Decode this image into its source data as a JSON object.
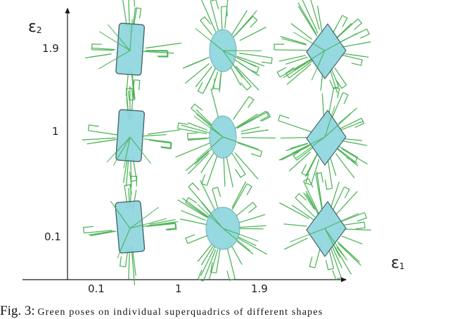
{
  "figure": {
    "x_axis": {
      "symbol": "ε",
      "subscript": "1",
      "ticks": [
        "0.1",
        "1",
        "1.9"
      ]
    },
    "y_axis": {
      "symbol": "ε",
      "subscript": "2",
      "ticks": [
        "1.9",
        "1",
        "0.1"
      ]
    },
    "colors": {
      "shape_fill": "#8fd6de",
      "shape_edge": "#3a5a60",
      "pose_lines": "#3fae4a",
      "axis": "#1a1a1a"
    },
    "grid": [
      {
        "row": "1.9",
        "col": "0.1",
        "shape": "box"
      },
      {
        "row": "1.9",
        "col": "1",
        "shape": "ellipsoid"
      },
      {
        "row": "1.9",
        "col": "1.9",
        "shape": "octahedron"
      },
      {
        "row": "1",
        "col": "0.1",
        "shape": "box"
      },
      {
        "row": "1",
        "col": "1",
        "shape": "ellipsoid"
      },
      {
        "row": "1",
        "col": "1.9",
        "shape": "octahedron"
      },
      {
        "row": "0.1",
        "col": "0.1",
        "shape": "box"
      },
      {
        "row": "0.1",
        "col": "1",
        "shape": "ellipsoid"
      },
      {
        "row": "0.1",
        "col": "1.9",
        "shape": "octahedron"
      }
    ]
  },
  "caption": {
    "label": "Fig. 3:",
    "text": "Green poses on individual superquadrics of different shapes"
  }
}
